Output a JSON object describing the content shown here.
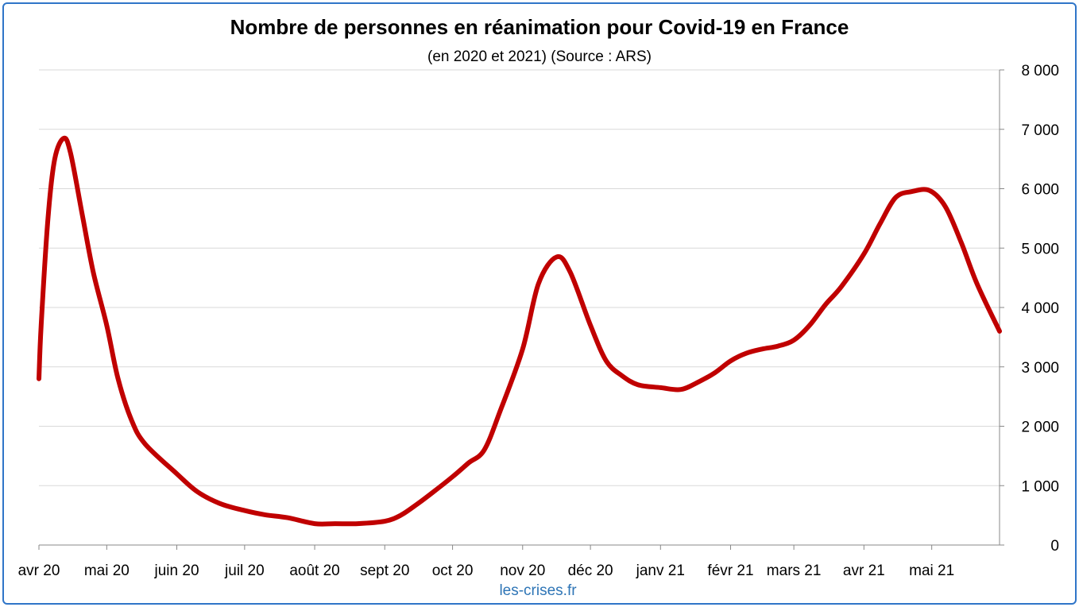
{
  "chart_data": {
    "type": "line",
    "title": "Nombre de personnes en réanimation pour Covid-19 en France",
    "subtitle": "(en 2020 et 2021) (Source : ARS)",
    "xlabel": "",
    "ylabel": "",
    "source": "les-crises.fr",
    "x_range": [
      "2020-04-01",
      "2021-05-31"
    ],
    "ylim": [
      0,
      8000
    ],
    "y_ticks": [
      0,
      1000,
      2000,
      3000,
      4000,
      5000,
      6000,
      7000,
      8000
    ],
    "y_tick_labels": [
      "0",
      "1 000",
      "2 000",
      "3 000",
      "4 000",
      "5 000",
      "6 000",
      "7 000",
      "8 000"
    ],
    "y_axis_position": "right",
    "grid": true,
    "x_ticks": [
      {
        "date": "2020-04-01",
        "label": "avr 20"
      },
      {
        "date": "2020-05-01",
        "label": "mai 20"
      },
      {
        "date": "2020-06-01",
        "label": "juin 20"
      },
      {
        "date": "2020-07-01",
        "label": "juil 20"
      },
      {
        "date": "2020-08-01",
        "label": "août 20"
      },
      {
        "date": "2020-09-01",
        "label": "sept 20"
      },
      {
        "date": "2020-10-01",
        "label": "oct 20"
      },
      {
        "date": "2020-11-01",
        "label": "nov 20"
      },
      {
        "date": "2020-12-01",
        "label": "déc 20"
      },
      {
        "date": "2021-01-01",
        "label": "janv 21"
      },
      {
        "date": "2021-02-01",
        "label": "févr 21"
      },
      {
        "date": "2021-03-01",
        "label": "mars 21"
      },
      {
        "date": "2021-04-01",
        "label": "avr 21"
      },
      {
        "date": "2021-05-01",
        "label": "mai 21"
      }
    ],
    "series": [
      {
        "color": "#c00000",
        "points": [
          [
            "2020-04-01",
            2800
          ],
          [
            "2020-04-02",
            3700
          ],
          [
            "2020-04-05",
            5500
          ],
          [
            "2020-04-08",
            6500
          ],
          [
            "2020-04-12",
            6850
          ],
          [
            "2020-04-15",
            6600
          ],
          [
            "2020-04-20",
            5600
          ],
          [
            "2020-04-25",
            4600
          ],
          [
            "2020-05-01",
            3700
          ],
          [
            "2020-05-06",
            2800
          ],
          [
            "2020-05-12",
            2100
          ],
          [
            "2020-05-18",
            1700
          ],
          [
            "2020-06-01",
            1200
          ],
          [
            "2020-06-10",
            900
          ],
          [
            "2020-06-20",
            700
          ],
          [
            "2020-07-01",
            580
          ],
          [
            "2020-07-10",
            510
          ],
          [
            "2020-07-20",
            460
          ],
          [
            "2020-08-01",
            360
          ],
          [
            "2020-08-10",
            360
          ],
          [
            "2020-08-20",
            360
          ],
          [
            "2020-09-01",
            400
          ],
          [
            "2020-09-08",
            500
          ],
          [
            "2020-09-15",
            680
          ],
          [
            "2020-09-22",
            880
          ],
          [
            "2020-10-01",
            1150
          ],
          [
            "2020-10-08",
            1380
          ],
          [
            "2020-10-15",
            1600
          ],
          [
            "2020-10-22",
            2250
          ],
          [
            "2020-11-01",
            3300
          ],
          [
            "2020-11-08",
            4400
          ],
          [
            "2020-11-16",
            4850
          ],
          [
            "2020-11-22",
            4600
          ],
          [
            "2020-12-01",
            3700
          ],
          [
            "2020-12-08",
            3100
          ],
          [
            "2020-12-15",
            2850
          ],
          [
            "2020-12-22",
            2700
          ],
          [
            "2021-01-01",
            2650
          ],
          [
            "2021-01-10",
            2620
          ],
          [
            "2021-01-18",
            2750
          ],
          [
            "2021-01-25",
            2900
          ],
          [
            "2021-02-01",
            3100
          ],
          [
            "2021-02-08",
            3230
          ],
          [
            "2021-02-15",
            3300
          ],
          [
            "2021-02-22",
            3350
          ],
          [
            "2021-03-01",
            3450
          ],
          [
            "2021-03-08",
            3700
          ],
          [
            "2021-03-15",
            4050
          ],
          [
            "2021-03-22",
            4350
          ],
          [
            "2021-04-01",
            4900
          ],
          [
            "2021-04-08",
            5400
          ],
          [
            "2021-04-15",
            5850
          ],
          [
            "2021-04-22",
            5950
          ],
          [
            "2021-04-30",
            5970
          ],
          [
            "2021-05-07",
            5700
          ],
          [
            "2021-05-14",
            5100
          ],
          [
            "2021-05-21",
            4400
          ],
          [
            "2021-05-31",
            3600
          ]
        ]
      }
    ]
  }
}
